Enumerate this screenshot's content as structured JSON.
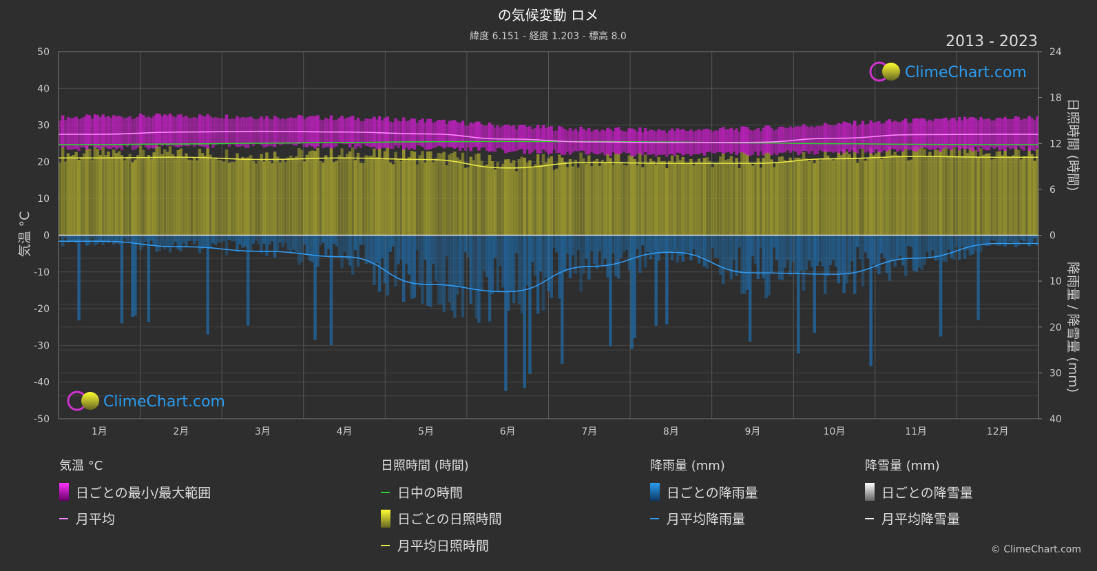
{
  "header": {
    "title": "の気候変動 ロメ",
    "subtitle": "緯度 6.151 - 経度 1.203 - 標高 8.0",
    "period": "2013 - 2023"
  },
  "branding": {
    "logo_text": "ClimeChart.com",
    "copyright": "© ClimeChart.com"
  },
  "colors": {
    "background": "#2e2e2e",
    "temp_range": "#cc22cc",
    "temp_avg": "#ff88ff",
    "daylight": "#33cc33",
    "sunshine_fill": "#a6a333",
    "sunshine_avg": "#e8e84a",
    "rain": "#1f8fe0",
    "rain_avg": "#3399ee",
    "snow_avg": "#ffffff",
    "logo_text": "#2b9cf0"
  },
  "legend": {
    "groups": [
      {
        "title": "気温 °C",
        "items": [
          {
            "label": "日ごとの最小/最大範囲",
            "swatch": "temp-range-swatch"
          },
          {
            "label": "月平均",
            "swatch": "temp-avg-swatch"
          }
        ]
      },
      {
        "title": "日照時間 (時間)",
        "items": [
          {
            "label": "日中の時間",
            "swatch": "daylight-swatch"
          },
          {
            "label": "日ごとの日照時間",
            "swatch": "sunshine-swatch"
          },
          {
            "label": "月平均日照時間",
            "swatch": "sunshine-avg-swatch"
          }
        ]
      },
      {
        "title": "降雨量 (mm)",
        "items": [
          {
            "label": "日ごとの降雨量",
            "swatch": "rain-swatch"
          },
          {
            "label": "月平均降雨量",
            "swatch": "rain-avg-swatch"
          }
        ]
      },
      {
        "title": "降雪量 (mm)",
        "items": [
          {
            "label": "日ごとの降雪量",
            "swatch": "snow-swatch"
          },
          {
            "label": "月平均降雪量",
            "swatch": "snow-avg-swatch"
          }
        ]
      }
    ]
  },
  "chart_data": {
    "type": "line",
    "categories": [
      "1月",
      "2月",
      "3月",
      "4月",
      "5月",
      "6月",
      "7月",
      "8月",
      "9月",
      "10月",
      "11月",
      "12月"
    ],
    "left_axis": {
      "label": "気温 °C",
      "ylim": [
        -50,
        50
      ],
      "ticks": [
        "50",
        "40",
        "30",
        "20",
        "10",
        "0",
        "-10",
        "-20",
        "-30",
        "-40",
        "-50"
      ]
    },
    "right_axis_sunshine": {
      "label": "日照時間 (時間)",
      "ylim": [
        0,
        24
      ],
      "ticks": [
        "24",
        "18",
        "12",
        "6",
        "0"
      ]
    },
    "right_axis_precip": {
      "label": "降雨量 / 降雪量 (mm)",
      "ylim": [
        0,
        40
      ],
      "ticks": [
        "0",
        "10",
        "20",
        "30",
        "40"
      ]
    },
    "grid": true,
    "series": [
      {
        "name": "日ごとの最小/最大範囲",
        "axis": "temperature",
        "type": "band",
        "min": [
          24.5,
          25.0,
          25.2,
          25.0,
          24.5,
          23.8,
          23.0,
          22.8,
          23.0,
          23.5,
          24.0,
          24.2
        ],
        "max": [
          31.5,
          31.8,
          31.5,
          31.2,
          30.5,
          29.0,
          28.0,
          27.8,
          28.2,
          29.5,
          30.5,
          31.0
        ]
      },
      {
        "name": "月平均",
        "axis": "temperature",
        "values": [
          27.5,
          28.1,
          28.3,
          28.1,
          27.6,
          26.2,
          25.4,
          25.2,
          25.3,
          26.4,
          27.4,
          27.5
        ]
      },
      {
        "name": "日中の時間",
        "axis": "sunshine",
        "values": [
          11.85,
          11.93,
          12.03,
          12.13,
          12.22,
          12.26,
          12.24,
          12.17,
          12.07,
          11.97,
          11.88,
          11.84
        ]
      },
      {
        "name": "日ごとの日照時間",
        "axis": "sunshine",
        "type": "area",
        "values": [
          10.6,
          10.7,
          10.4,
          10.5,
          10.3,
          9.4,
          9.8,
          9.7,
          9.8,
          10.4,
          10.7,
          10.6
        ]
      },
      {
        "name": "月平均日照時間",
        "axis": "sunshine",
        "values": [
          10.1,
          10.2,
          9.9,
          10.1,
          9.9,
          8.8,
          9.5,
          9.4,
          9.4,
          10.0,
          10.3,
          10.2
        ]
      },
      {
        "name": "月平均降雨量",
        "axis": "precip",
        "values": [
          1.3,
          2.5,
          3.5,
          4.7,
          10.7,
          12.3,
          6.8,
          3.7,
          8.2,
          8.5,
          5.0,
          1.8
        ]
      },
      {
        "name": "月平均降雪量",
        "axis": "precip",
        "values": [
          0,
          0,
          0,
          0,
          0,
          0,
          0,
          0,
          0,
          0,
          0,
          0
        ]
      }
    ]
  }
}
